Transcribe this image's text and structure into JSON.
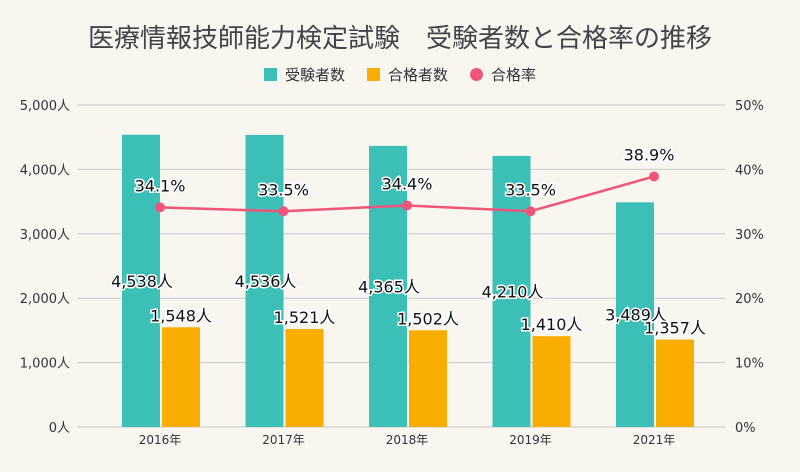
{
  "chart_data": {
    "type": "bar",
    "title": "医療情報技師能力検定試験　受験者数と合格率の推移",
    "categories": [
      "2016年",
      "2017年",
      "2018年",
      "2019年",
      "2021年"
    ],
    "series": [
      {
        "name": "受験者数",
        "type": "bar",
        "axis": "left",
        "color": "#3bbfb7",
        "values": [
          4538,
          4536,
          4365,
          4210,
          3489
        ],
        "labels": [
          "4,538人",
          "4,536人",
          "4,365人",
          "4,210人",
          "3,489人"
        ]
      },
      {
        "name": "合格者数",
        "type": "bar",
        "axis": "left",
        "color": "#f9ad00",
        "values": [
          1548,
          1521,
          1502,
          1410,
          1357
        ],
        "labels": [
          "1,548人",
          "1,521人",
          "1,502人",
          "1,410人",
          "1,357人"
        ]
      },
      {
        "name": "合格率",
        "type": "line",
        "axis": "right",
        "color": "#f0557a",
        "values": [
          34.1,
          33.5,
          34.4,
          33.5,
          38.9
        ],
        "labels": [
          "34.1%",
          "33.5%",
          "34.4%",
          "33.5%",
          "38.9%"
        ]
      }
    ],
    "left_axis": {
      "ylim": [
        0,
        5000
      ],
      "ticks": [
        "0人",
        "1,000人",
        "2,000人",
        "3,000人",
        "4,000人",
        "5,000人"
      ]
    },
    "right_axis": {
      "ylim": [
        0,
        50
      ],
      "ticks": [
        "0%",
        "10%",
        "20%",
        "30%",
        "40%",
        "50%"
      ]
    },
    "grid": true,
    "legend": "top"
  }
}
